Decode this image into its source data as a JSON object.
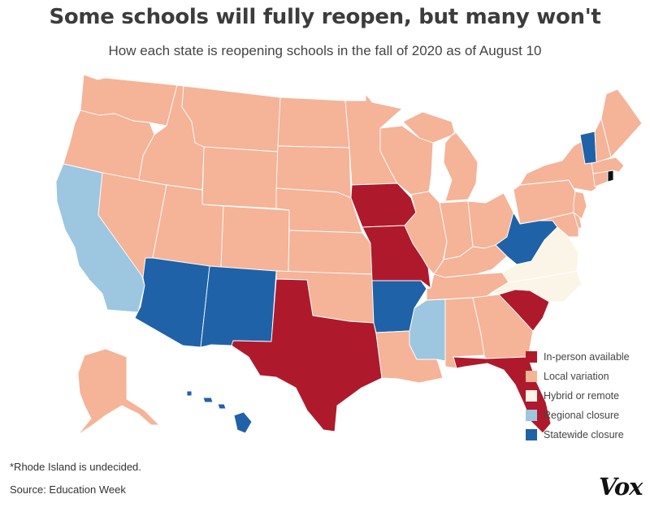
{
  "title": "Some schools will fully reopen, but many won't",
  "subtitle": "How each state is reopening schools in the fall of 2020 as of August 10",
  "legend": [
    {
      "label": "In-person available",
      "color": "#ae1a2c"
    },
    {
      "label": "Local variation",
      "color": "#f5b398"
    },
    {
      "label": "Hybrid or remote",
      "color": "#fbf5e7"
    },
    {
      "label": "Regional closure",
      "color": "#9dc6e0"
    },
    {
      "label": "Statewide closure",
      "color": "#1f62a8"
    }
  ],
  "states": [
    {
      "name": "Washington",
      "category": "Local variation"
    },
    {
      "name": "Oregon",
      "category": "Local variation"
    },
    {
      "name": "California",
      "category": "Regional closure"
    },
    {
      "name": "Nevada",
      "category": "Local variation"
    },
    {
      "name": "Idaho",
      "category": "Local variation"
    },
    {
      "name": "Montana",
      "category": "Local variation"
    },
    {
      "name": "Wyoming",
      "category": "Local variation"
    },
    {
      "name": "Utah",
      "category": "Local variation"
    },
    {
      "name": "Colorado",
      "category": "Local variation"
    },
    {
      "name": "Arizona",
      "category": "Statewide closure"
    },
    {
      "name": "New Mexico",
      "category": "Statewide closure"
    },
    {
      "name": "North Dakota",
      "category": "Local variation"
    },
    {
      "name": "South Dakota",
      "category": "Local variation"
    },
    {
      "name": "Nebraska",
      "category": "Local variation"
    },
    {
      "name": "Kansas",
      "category": "Local variation"
    },
    {
      "name": "Oklahoma",
      "category": "Local variation"
    },
    {
      "name": "Texas",
      "category": "In-person available"
    },
    {
      "name": "Minnesota",
      "category": "Local variation"
    },
    {
      "name": "Iowa",
      "category": "In-person available"
    },
    {
      "name": "Missouri",
      "category": "In-person available"
    },
    {
      "name": "Arkansas",
      "category": "Statewide closure"
    },
    {
      "name": "Louisiana",
      "category": "Local variation"
    },
    {
      "name": "Wisconsin",
      "category": "Local variation"
    },
    {
      "name": "Illinois",
      "category": "Local variation"
    },
    {
      "name": "Michigan",
      "category": "Local variation"
    },
    {
      "name": "Indiana",
      "category": "Local variation"
    },
    {
      "name": "Ohio",
      "category": "Local variation"
    },
    {
      "name": "Kentucky",
      "category": "Local variation"
    },
    {
      "name": "Tennessee",
      "category": "Local variation"
    },
    {
      "name": "Mississippi",
      "category": "Regional closure"
    },
    {
      "name": "Alabama",
      "category": "Local variation"
    },
    {
      "name": "Georgia",
      "category": "Local variation"
    },
    {
      "name": "Florida",
      "category": "In-person available"
    },
    {
      "name": "South Carolina",
      "category": "In-person available"
    },
    {
      "name": "North Carolina",
      "category": "Hybrid or remote"
    },
    {
      "name": "Virginia",
      "category": "Hybrid or remote"
    },
    {
      "name": "West Virginia",
      "category": "Statewide closure"
    },
    {
      "name": "Pennsylvania",
      "category": "Local variation"
    },
    {
      "name": "New York",
      "category": "Local variation"
    },
    {
      "name": "Maryland",
      "category": "Local variation"
    },
    {
      "name": "Delaware",
      "category": "Local variation"
    },
    {
      "name": "New Jersey",
      "category": "Local variation"
    },
    {
      "name": "Connecticut",
      "category": "Local variation"
    },
    {
      "name": "Rhode Island",
      "category": "Undecided"
    },
    {
      "name": "Massachusetts",
      "category": "Local variation"
    },
    {
      "name": "Vermont",
      "category": "Statewide closure"
    },
    {
      "name": "New Hampshire",
      "category": "Local variation"
    },
    {
      "name": "Maine",
      "category": "Local variation"
    },
    {
      "name": "Alaska",
      "category": "Local variation"
    },
    {
      "name": "Hawaii",
      "category": "Statewide closure"
    }
  ],
  "undecided_color": "#111111",
  "footnote": "*Rhode Island is undecided.",
  "source": "Source: Education Week",
  "brand": "Vox"
}
